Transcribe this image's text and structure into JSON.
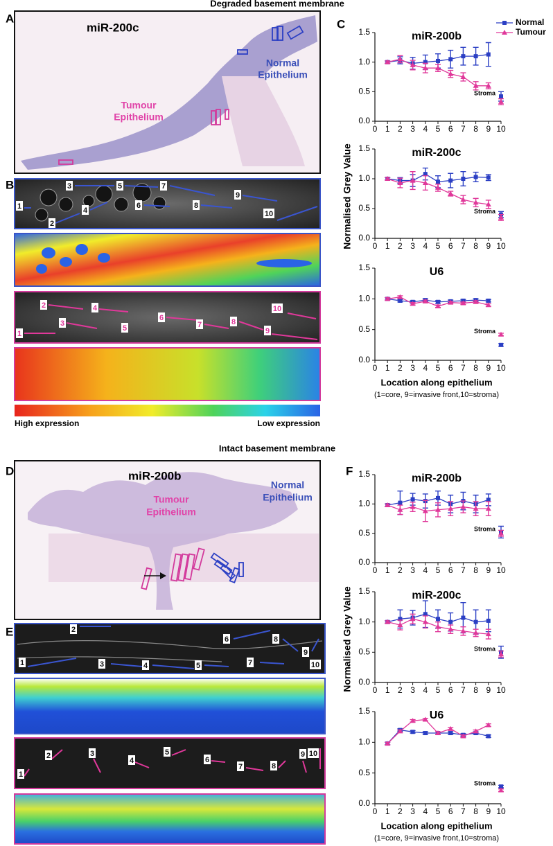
{
  "headings": {
    "top": "Degraded basement membrane",
    "bottom": "Intact basement membrane"
  },
  "panels": {
    "A": {
      "letter": "A",
      "probe": "miR-200c",
      "normal": [
        "Normal",
        "Epithelium"
      ],
      "tumour": [
        "Tumour",
        "Epithelium"
      ]
    },
    "B": {
      "letter": "B",
      "image1_labels": [
        "1",
        "2",
        "3",
        "4",
        "5",
        "6",
        "7",
        "8",
        "9",
        "10"
      ],
      "image2_labels": [
        "1",
        "2",
        "3",
        "4",
        "5",
        "6",
        "7",
        "8",
        "9",
        "10"
      ],
      "high": "High expression",
      "low": "Low expression"
    },
    "C": {
      "letter": "C"
    },
    "D": {
      "letter": "D",
      "probe": "miR-200b",
      "normal": [
        "Normal",
        "Epithelium"
      ],
      "tumour": [
        "Tumour",
        "Epithelium"
      ]
    },
    "E": {
      "letter": "E",
      "image1_labels": [
        "1",
        "2",
        "3",
        "4",
        "5",
        "6",
        "7",
        "8",
        "9",
        "10"
      ],
      "image2_labels": [
        "1",
        "2",
        "3",
        "4",
        "5",
        "6",
        "7",
        "8",
        "9",
        "10"
      ]
    },
    "F": {
      "letter": "F"
    }
  },
  "chart_data": [
    {
      "type": "line",
      "title": "miR-200b",
      "legend": true,
      "x": [
        1,
        2,
        3,
        4,
        5,
        6,
        7,
        8,
        9
      ],
      "stroma_x": 10,
      "stroma_label": "Stroma",
      "xlim": [
        0,
        10
      ],
      "xticks": [
        0,
        1,
        2,
        3,
        4,
        5,
        6,
        7,
        8,
        9,
        10
      ],
      "ylim": [
        0,
        1.5
      ],
      "yticks": [
        {
          "value": 0,
          "label": "0.0"
        },
        {
          "value": 0.5,
          "label": "0.5"
        },
        {
          "value": 1,
          "label": "1.0"
        },
        {
          "value": 1.5,
          "label": "1.5"
        }
      ],
      "series": [
        {
          "name": "Normal",
          "color": "#2b3fc4",
          "marker": "square",
          "values": [
            1.0,
            1.03,
            0.98,
            1.0,
            1.02,
            1.05,
            1.1,
            1.1,
            1.13
          ],
          "errors": [
            0.02,
            0.06,
            0.1,
            0.12,
            0.12,
            0.15,
            0.15,
            0.15,
            0.2
          ],
          "stroma": 0.42,
          "stroma_error": 0.08
        },
        {
          "name": "Tumour",
          "color": "#e0389a",
          "marker": "triangle",
          "values": [
            1.0,
            1.05,
            0.95,
            0.9,
            0.9,
            0.8,
            0.75,
            0.6,
            0.6
          ],
          "errors": [
            0.02,
            0.06,
            0.08,
            0.08,
            0.06,
            0.06,
            0.07,
            0.07,
            0.05
          ],
          "stroma": 0.33,
          "stroma_error": 0.05
        }
      ]
    },
    {
      "type": "line",
      "title": "miR-200c",
      "ylabel": "Normalised Grey Value",
      "x": [
        1,
        2,
        3,
        4,
        5,
        6,
        7,
        8,
        9
      ],
      "stroma_x": 10,
      "stroma_label": "Stroma",
      "xlim": [
        0,
        10
      ],
      "xticks": [
        0,
        1,
        2,
        3,
        4,
        5,
        6,
        7,
        8,
        9,
        10
      ],
      "ylim": [
        0,
        1.5
      ],
      "yticks": [
        {
          "value": 0,
          "label": "0.0"
        },
        {
          "value": 0.5,
          "label": "0.5"
        },
        {
          "value": 1,
          "label": "1.0"
        },
        {
          "value": 1.5,
          "label": "1.5"
        }
      ],
      "series": [
        {
          "color": "#2b3fc4",
          "marker": "square",
          "values": [
            1.0,
            0.97,
            0.97,
            1.08,
            0.95,
            0.97,
            1.0,
            1.03,
            1.02
          ],
          "errors": [
            0.02,
            0.05,
            0.1,
            0.1,
            0.1,
            0.12,
            0.12,
            0.08,
            0.05
          ],
          "stroma": 0.4,
          "stroma_error": 0.05
        },
        {
          "color": "#e0389a",
          "marker": "triangle",
          "values": [
            1.0,
            0.93,
            0.97,
            0.93,
            0.85,
            0.75,
            0.65,
            0.6,
            0.57
          ],
          "errors": [
            0.02,
            0.08,
            0.15,
            0.12,
            0.06,
            0.04,
            0.07,
            0.07,
            0.07
          ],
          "stroma": 0.35,
          "stroma_error": 0.05
        }
      ]
    },
    {
      "type": "line",
      "title": "U6",
      "xlabel": "Location along epithelium",
      "xnote": "(1=core, 9=invasive front,10=stroma)",
      "x": [
        1,
        2,
        3,
        4,
        5,
        6,
        7,
        8,
        9
      ],
      "stroma_x": 10,
      "stroma_label": "Stroma",
      "xlim": [
        0,
        10
      ],
      "xticks": [
        0,
        1,
        2,
        3,
        4,
        5,
        6,
        7,
        8,
        9,
        10
      ],
      "ylim": [
        0,
        1.5
      ],
      "yticks": [
        {
          "value": 0,
          "label": "0.0"
        },
        {
          "value": 0.5,
          "label": "0.5"
        },
        {
          "value": 1,
          "label": "1.0"
        },
        {
          "value": 1.5,
          "label": "1.5"
        }
      ],
      "series": [
        {
          "color": "#2b3fc4",
          "marker": "square",
          "values": [
            1.0,
            0.97,
            0.95,
            0.98,
            0.95,
            0.96,
            0.97,
            0.98,
            0.97
          ],
          "errors": [
            0.02,
            0.02,
            0.02,
            0.02,
            0.02,
            0.02,
            0.02,
            0.02,
            0.02
          ],
          "stroma": 0.25,
          "stroma_error": 0.02
        },
        {
          "color": "#e0389a",
          "marker": "triangle",
          "values": [
            1.0,
            1.03,
            0.92,
            0.96,
            0.88,
            0.94,
            0.93,
            0.95,
            0.9
          ],
          "errors": [
            0.02,
            0.02,
            0.02,
            0.02,
            0.02,
            0.02,
            0.02,
            0.02,
            0.02
          ],
          "stroma": 0.42,
          "stroma_error": 0.02
        }
      ]
    },
    {
      "type": "line",
      "title": "miR-200b",
      "x": [
        1,
        2,
        3,
        4,
        5,
        6,
        7,
        8,
        9
      ],
      "stroma_x": 10,
      "stroma_label": "Stroma",
      "xlim": [
        0,
        10
      ],
      "xticks": [
        0,
        1,
        2,
        3,
        4,
        5,
        6,
        7,
        8,
        9,
        10
      ],
      "ylim": [
        0,
        1.5
      ],
      "yticks": [
        {
          "value": 0,
          "label": "0.0"
        },
        {
          "value": 0.5,
          "label": "0.5"
        },
        {
          "value": 1,
          "label": "1.0"
        },
        {
          "value": 1.5,
          "label": "1.5"
        }
      ],
      "series": [
        {
          "color": "#2b3fc4",
          "marker": "square",
          "values": [
            0.98,
            1.02,
            1.08,
            1.05,
            1.1,
            1.0,
            1.05,
            1.0,
            1.07
          ],
          "errors": [
            0.02,
            0.2,
            0.1,
            0.12,
            0.12,
            0.15,
            0.15,
            0.15,
            0.1
          ],
          "stroma": 0.52,
          "stroma_error": 0.1
        },
        {
          "color": "#e0389a",
          "marker": "triangle",
          "values": [
            0.98,
            0.9,
            0.95,
            0.88,
            0.9,
            0.92,
            0.95,
            0.92,
            0.92
          ],
          "errors": [
            0.02,
            0.08,
            0.08,
            0.18,
            0.12,
            0.12,
            0.1,
            0.12,
            0.12
          ],
          "stroma": 0.5,
          "stroma_error": 0.05
        }
      ]
    },
    {
      "type": "line",
      "title": "miR-200c",
      "ylabel": "Normalised Grey Value",
      "x": [
        1,
        2,
        3,
        4,
        5,
        6,
        7,
        8,
        9
      ],
      "stroma_x": 10,
      "stroma_label": "Stroma",
      "xlim": [
        0,
        10
      ],
      "xticks": [
        0,
        1,
        2,
        3,
        4,
        5,
        6,
        7,
        8,
        9,
        10
      ],
      "ylim": [
        0,
        1.5
      ],
      "yticks": [
        {
          "value": 0,
          "label": "0.0"
        },
        {
          "value": 0.5,
          "label": "0.5"
        },
        {
          "value": 1,
          "label": "1.0"
        },
        {
          "value": 1.5,
          "label": "1.5"
        }
      ],
      "series": [
        {
          "color": "#2b3fc4",
          "marker": "square",
          "values": [
            1.0,
            1.05,
            1.07,
            1.13,
            1.05,
            1.0,
            1.07,
            1.0,
            1.02
          ],
          "errors": [
            0.02,
            0.15,
            0.12,
            0.22,
            0.15,
            0.15,
            0.25,
            0.2,
            0.18
          ],
          "stroma": 0.5,
          "stroma_error": 0.1
        },
        {
          "color": "#e0389a",
          "marker": "triangle",
          "values": [
            1.0,
            0.95,
            1.05,
            1.0,
            0.92,
            0.88,
            0.85,
            0.82,
            0.8
          ],
          "errors": [
            0.02,
            0.08,
            0.08,
            0.1,
            0.08,
            0.07,
            0.07,
            0.06,
            0.08
          ],
          "stroma": 0.47,
          "stroma_error": 0.05
        }
      ]
    },
    {
      "type": "line",
      "title": "U6",
      "xlabel": "Location along epithelium",
      "xnote": "(1=core, 9=invasive front,10=stroma)",
      "x": [
        1,
        2,
        3,
        4,
        5,
        6,
        7,
        8,
        9
      ],
      "stroma_x": 10,
      "stroma_label": "Stroma",
      "xlim": [
        0,
        10
      ],
      "xticks": [
        0,
        1,
        2,
        3,
        4,
        5,
        6,
        7,
        8,
        9,
        10
      ],
      "ylim": [
        0,
        1.5
      ],
      "yticks": [
        {
          "value": 0,
          "label": "0.0"
        },
        {
          "value": 0.5,
          "label": "0.5"
        },
        {
          "value": 1,
          "label": "1.0"
        },
        {
          "value": 1.5,
          "label": "1.5"
        }
      ],
      "series": [
        {
          "color": "#2b3fc4",
          "marker": "square",
          "values": [
            0.98,
            1.2,
            1.17,
            1.15,
            1.15,
            1.15,
            1.12,
            1.15,
            1.1
          ],
          "errors": [
            0.02,
            0.02,
            0.02,
            0.02,
            0.02,
            0.02,
            0.02,
            0.02,
            0.02
          ],
          "stroma": 0.28,
          "stroma_error": 0.02
        },
        {
          "color": "#e0389a",
          "marker": "triangle",
          "values": [
            0.98,
            1.18,
            1.35,
            1.37,
            1.15,
            1.22,
            1.1,
            1.18,
            1.28
          ],
          "errors": [
            0.02,
            0.02,
            0.02,
            0.02,
            0.02,
            0.02,
            0.02,
            0.02,
            0.02
          ],
          "stroma": 0.22,
          "stroma_error": 0.02
        }
      ]
    }
  ]
}
